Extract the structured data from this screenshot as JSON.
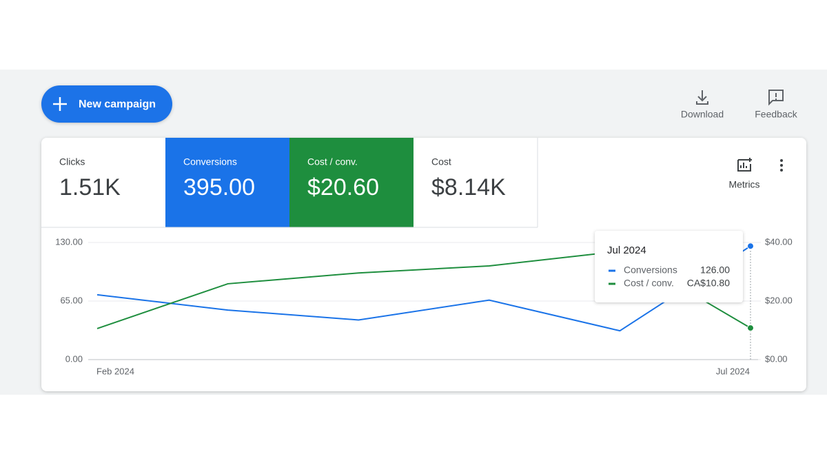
{
  "toolbar": {
    "new_campaign": "New campaign",
    "download": "Download",
    "feedback": "Feedback",
    "metrics": "Metrics"
  },
  "scorecards": [
    {
      "label": "Clicks",
      "value": "1.51K"
    },
    {
      "label": "Conversions",
      "value": "395.00"
    },
    {
      "label": "Cost / conv.",
      "value": "$20.60"
    },
    {
      "label": "Cost",
      "value": "$8.14K"
    }
  ],
  "chart_data": {
    "type": "line",
    "categories": [
      "Feb 2024",
      null,
      null,
      null,
      null,
      "Jul 2024"
    ],
    "series": [
      {
        "name": "Conversions",
        "color": "#1a73e8",
        "values": [
          72,
          55,
          44,
          66,
          32,
          126
        ]
      },
      {
        "name": "Cost / conv.",
        "color": "#1e8e3e",
        "axis": "y2",
        "values": [
          10.6,
          25.9,
          29.6,
          32,
          37,
          10.8
        ]
      }
    ],
    "ylim": [
      0,
      130
    ],
    "yticks": [
      {
        "value": 0,
        "label": "0.00"
      },
      {
        "value": 65,
        "label": "65.00"
      },
      {
        "value": 130,
        "label": "130.00"
      }
    ],
    "y2lim": [
      0,
      40
    ],
    "y2ticks": [
      {
        "value": 0,
        "label": "$0.00"
      },
      {
        "value": 20,
        "label": "$20.00"
      },
      {
        "value": 40,
        "label": "$40.00"
      }
    ],
    "grid": true
  },
  "tooltip": {
    "title": "Jul 2024",
    "values": [
      "126.00",
      "CA$10.80"
    ]
  }
}
